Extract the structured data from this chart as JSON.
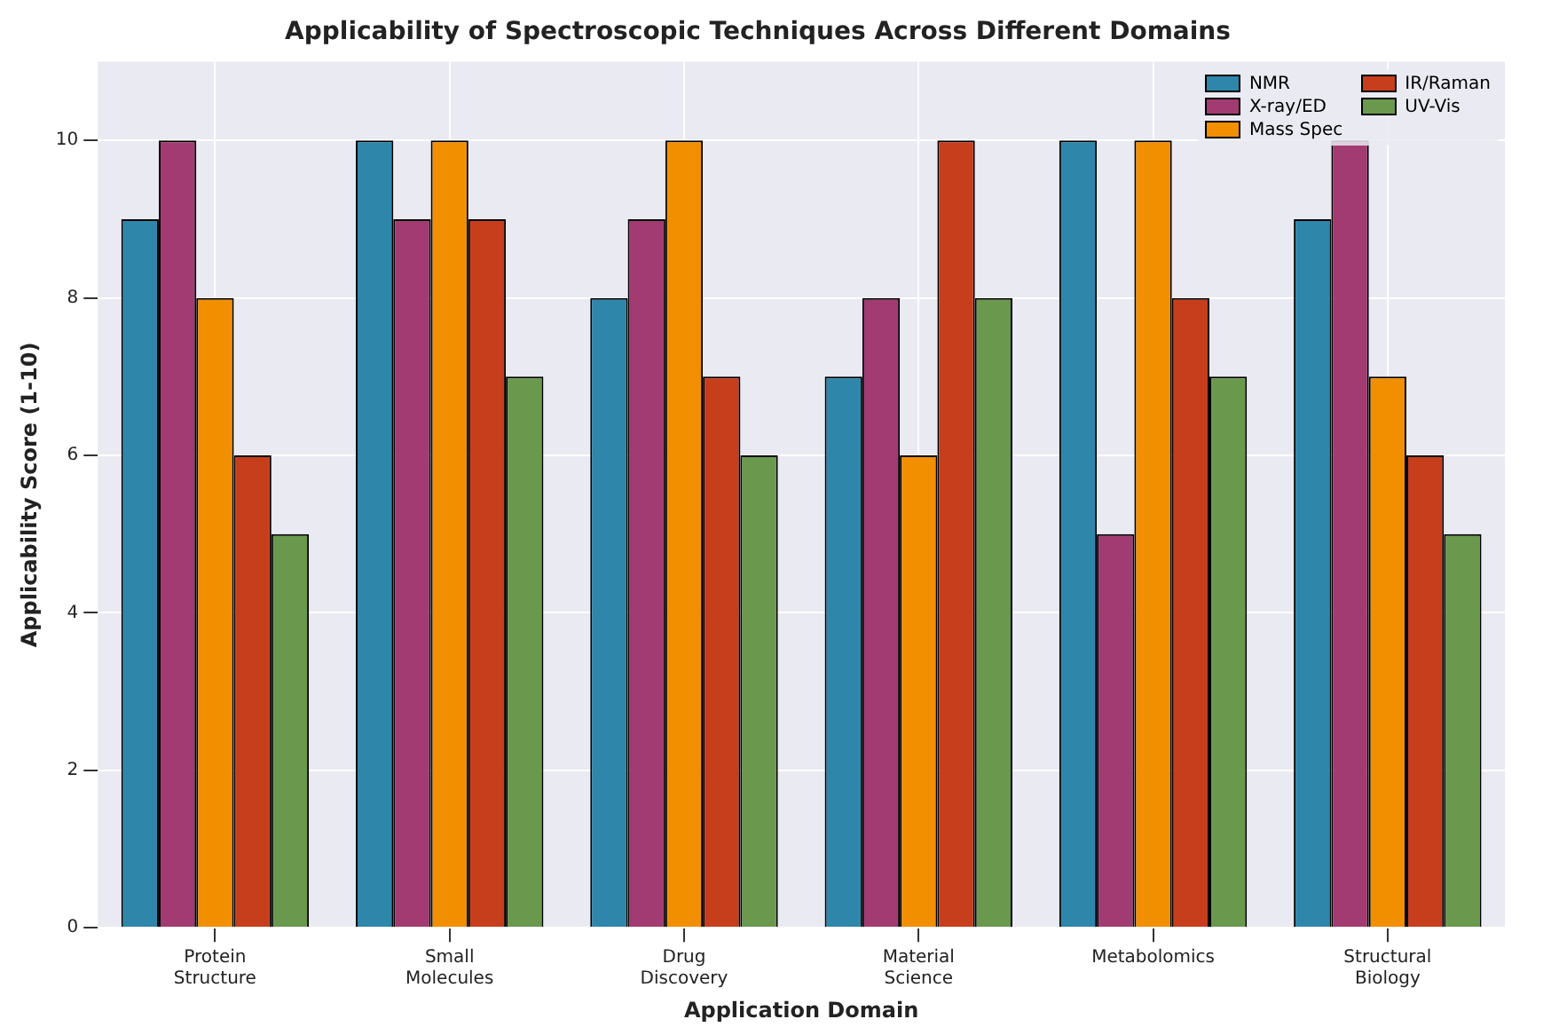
{
  "chart_data": {
    "type": "bar",
    "title": "Applicability of Spectroscopic Techniques Across Different Domains",
    "xlabel": "Application Domain",
    "ylabel": "Applicability Score (1-10)",
    "categories": [
      "Protein\nStructure",
      "Small\nMolecules",
      "Drug\nDiscovery",
      "Material\nScience",
      "Metabolomics",
      "Structural\nBiology"
    ],
    "series": [
      {
        "name": "NMR",
        "color": "#2e86ab",
        "values": [
          9,
          10,
          8,
          7,
          10,
          9
        ]
      },
      {
        "name": "X-ray/ED",
        "color": "#a23b72",
        "values": [
          10,
          9,
          9,
          8,
          5,
          10
        ]
      },
      {
        "name": "Mass Spec",
        "color": "#f18f01",
        "values": [
          8,
          10,
          10,
          6,
          10,
          7
        ]
      },
      {
        "name": "IR/Raman",
        "color": "#c73e1d",
        "values": [
          6,
          9,
          7,
          10,
          8,
          6
        ]
      },
      {
        "name": "UV-Vis",
        "color": "#6a994e",
        "values": [
          5,
          7,
          6,
          8,
          7,
          5
        ]
      }
    ],
    "ylim": [
      0,
      11
    ],
    "yticks": [
      0,
      2,
      4,
      6,
      8,
      10
    ],
    "grid": true,
    "legend": "top right"
  }
}
